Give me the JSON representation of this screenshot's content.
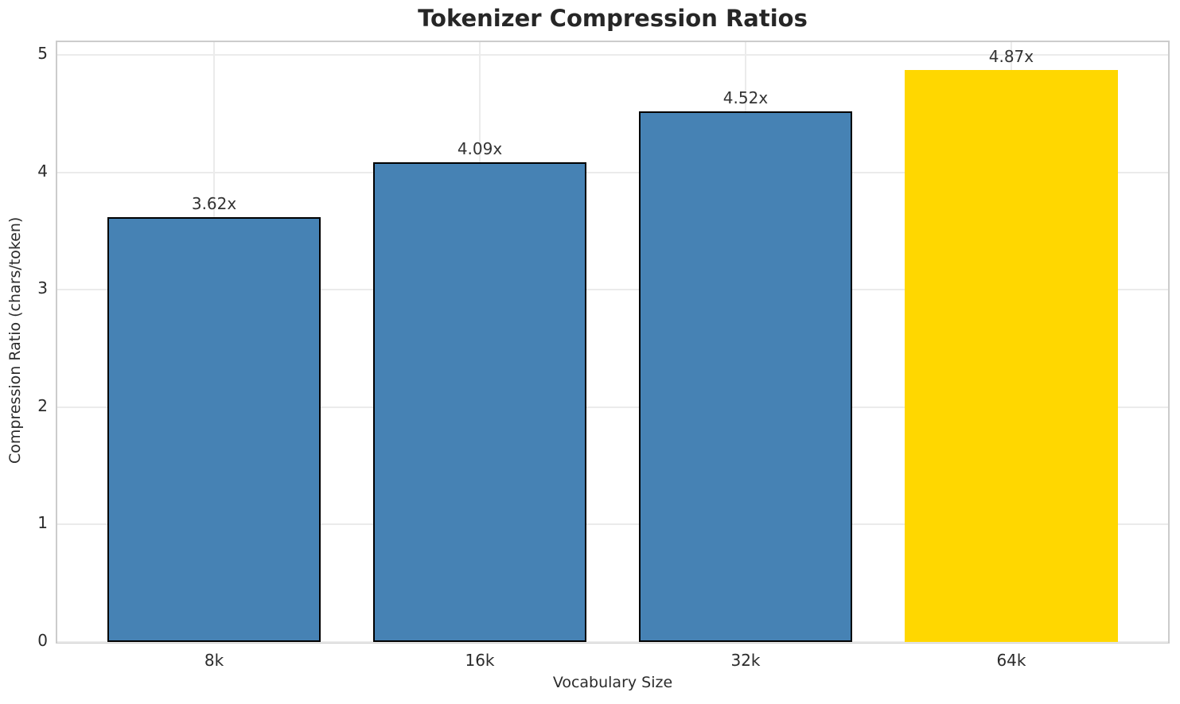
{
  "chart_data": {
    "type": "bar",
    "title": "Tokenizer Compression Ratios",
    "xlabel": "Vocabulary Size",
    "ylabel": "Compression Ratio (chars/token)",
    "categories": [
      "8k",
      "16k",
      "32k",
      "64k"
    ],
    "values": [
      3.62,
      4.09,
      4.52,
      4.87
    ],
    "bar_labels": [
      "3.62x",
      "4.09x",
      "4.52x",
      "4.87x"
    ],
    "bar_colors": [
      "#4682b4",
      "#4682b4",
      "#4682b4",
      "#ffd700"
    ],
    "bar_edge_colors": [
      "#000000",
      "#000000",
      "#000000",
      "none"
    ],
    "yticks": [
      0,
      1,
      2,
      3,
      4,
      5
    ],
    "ylim": [
      0,
      5.11
    ],
    "bar_width_frac": 0.8,
    "grid": true,
    "legend_position": "none",
    "colors": {
      "default_bar": "#4682b4",
      "highlight_bar": "#ffd700",
      "bar_edge": "#000000",
      "grid": "#ebebeb",
      "spine": "#cccccc",
      "title_text": "#262626",
      "tick_text": "#2b2b2b",
      "value_label_text": "#333333",
      "background": "#ffffff"
    }
  }
}
